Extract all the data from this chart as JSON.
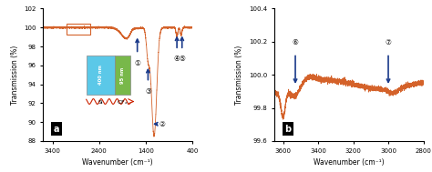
{
  "panel_a": {
    "xlim": [
      3600,
      400
    ],
    "ylim": [
      88,
      102
    ],
    "xlabel": "Wavenumber (cm⁻¹)",
    "ylabel": "Transmission (%)",
    "yticks": [
      88,
      90,
      92,
      94,
      96,
      98,
      100,
      102
    ],
    "xticks": [
      3400,
      2400,
      1400,
      400
    ],
    "label": "a"
  },
  "panel_b": {
    "xlim": [
      3650,
      2800
    ],
    "ylim": [
      99.6,
      100.4
    ],
    "xlabel": "Wavenumber (cm⁻¹)",
    "ylabel": "Transmission (%)",
    "yticks": [
      99.6,
      99.8,
      100.0,
      100.2,
      100.4
    ],
    "xticks": [
      3600,
      3400,
      3200,
      3000,
      2800
    ],
    "label": "b"
  },
  "line_color": "#d4622a",
  "arrow_color": "#1a3a8a",
  "inset_si_color": "#5bc8e8",
  "inset_cfx_color": "#78b84a",
  "inset_wave_color": "#cc2200",
  "rect_color": "#d4622a"
}
